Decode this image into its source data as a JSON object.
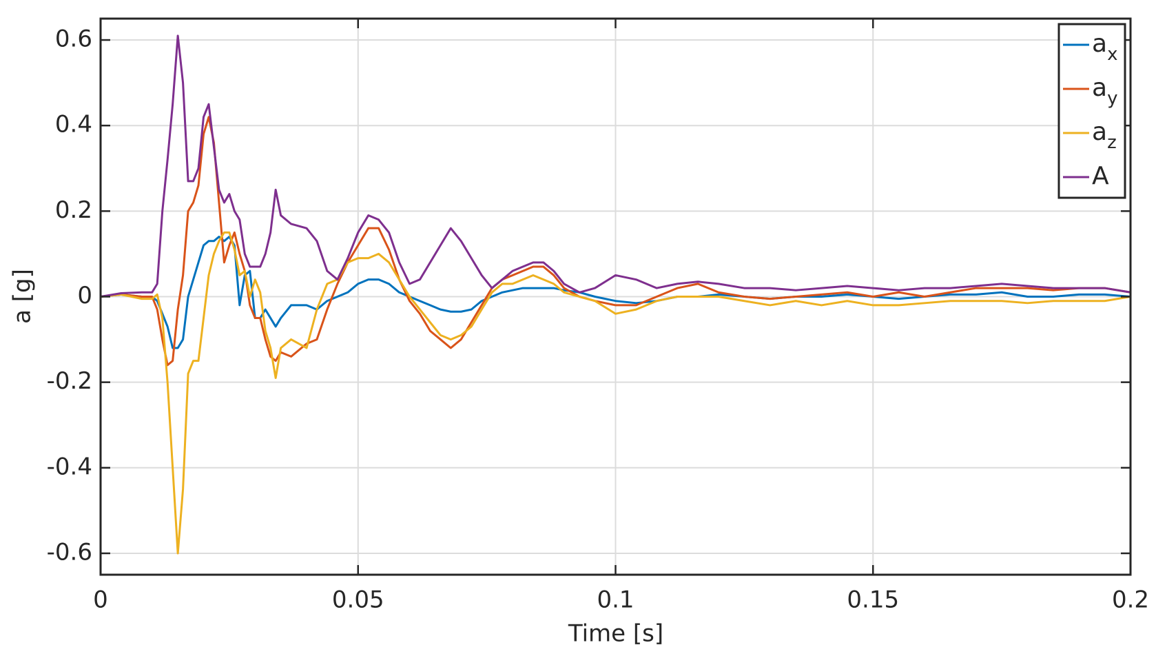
{
  "chart_data": {
    "type": "line",
    "x_label": "Time [s]",
    "y_label": "a [g]",
    "x": [
      0,
      0.004,
      0.008,
      0.01,
      0.011,
      0.012,
      0.013,
      0.014,
      0.015,
      0.016,
      0.017,
      0.018,
      0.019,
      0.02,
      0.021,
      0.022,
      0.023,
      0.024,
      0.025,
      0.026,
      0.027,
      0.028,
      0.029,
      0.03,
      0.031,
      0.032,
      0.033,
      0.034,
      0.035,
      0.037,
      0.04,
      0.042,
      0.044,
      0.046,
      0.048,
      0.05,
      0.052,
      0.054,
      0.056,
      0.058,
      0.06,
      0.062,
      0.064,
      0.066,
      0.068,
      0.07,
      0.072,
      0.074,
      0.076,
      0.078,
      0.08,
      0.082,
      0.084,
      0.086,
      0.088,
      0.09,
      0.093,
      0.096,
      0.1,
      0.104,
      0.108,
      0.112,
      0.116,
      0.12,
      0.125,
      0.13,
      0.135,
      0.14,
      0.145,
      0.15,
      0.155,
      0.16,
      0.165,
      0.17,
      0.175,
      0.18,
      0.185,
      0.19,
      0.195,
      0.2
    ],
    "series": [
      {
        "name": "a",
        "name_subscript": "x",
        "color": "#0072bd",
        "values": [
          0,
          0.005,
          0,
          0,
          -0.01,
          -0.04,
          -0.07,
          -0.12,
          -0.12,
          -0.1,
          0,
          0.04,
          0.08,
          0.12,
          0.13,
          0.13,
          0.14,
          0.13,
          0.14,
          0.12,
          -0.02,
          0.05,
          0.06,
          -0.05,
          -0.05,
          -0.03,
          -0.05,
          -0.07,
          -0.05,
          -0.02,
          -0.02,
          -0.03,
          -0.01,
          0,
          0.01,
          0.03,
          0.04,
          0.04,
          0.03,
          0.01,
          0,
          -0.01,
          -0.02,
          -0.03,
          -0.035,
          -0.035,
          -0.03,
          -0.01,
          0,
          0.01,
          0.015,
          0.02,
          0.02,
          0.02,
          0.02,
          0.015,
          0.01,
          0,
          -0.01,
          -0.015,
          -0.01,
          0,
          0,
          0.005,
          0,
          -0.005,
          0,
          0,
          0.005,
          0,
          -0.005,
          0,
          0.005,
          0.005,
          0.01,
          0,
          0,
          0.005,
          0.005,
          0
        ]
      },
      {
        "name": "a",
        "name_subscript": "y",
        "color": "#d95319",
        "values": [
          0,
          0.005,
          0,
          0,
          -0.03,
          -0.1,
          -0.16,
          -0.15,
          -0.03,
          0.05,
          0.2,
          0.22,
          0.26,
          0.38,
          0.42,
          0.36,
          0.22,
          0.08,
          0.12,
          0.15,
          0.1,
          0.06,
          -0.02,
          -0.05,
          -0.05,
          -0.1,
          -0.14,
          -0.15,
          -0.13,
          -0.14,
          -0.11,
          -0.1,
          -0.03,
          0.03,
          0.08,
          0.12,
          0.16,
          0.16,
          0.11,
          0.04,
          -0.01,
          -0.04,
          -0.08,
          -0.1,
          -0.12,
          -0.1,
          -0.06,
          -0.02,
          0.02,
          0.04,
          0.05,
          0.06,
          0.07,
          0.07,
          0.05,
          0.02,
          0,
          -0.01,
          -0.02,
          -0.02,
          0,
          0.02,
          0.03,
          0.01,
          0,
          -0.005,
          0,
          0.005,
          0.01,
          0,
          0.01,
          0,
          0.01,
          0.02,
          0.02,
          0.02,
          0.015,
          0.02,
          0.02,
          0.01
        ]
      },
      {
        "name": "a",
        "name_subscript": "z",
        "color": "#edb120",
        "values": [
          0,
          0.005,
          -0.005,
          -0.005,
          0.005,
          -0.05,
          -0.2,
          -0.4,
          -0.6,
          -0.45,
          -0.18,
          -0.15,
          -0.15,
          -0.05,
          0.05,
          0.1,
          0.13,
          0.15,
          0.15,
          0.11,
          0.05,
          0.06,
          0,
          0.04,
          0.01,
          -0.08,
          -0.12,
          -0.19,
          -0.12,
          -0.1,
          -0.12,
          -0.03,
          0.03,
          0.04,
          0.08,
          0.09,
          0.09,
          0.1,
          0.08,
          0.04,
          0,
          -0.03,
          -0.06,
          -0.09,
          -0.1,
          -0.09,
          -0.07,
          -0.03,
          0.01,
          0.03,
          0.03,
          0.04,
          0.05,
          0.04,
          0.03,
          0.01,
          0,
          -0.01,
          -0.04,
          -0.03,
          -0.01,
          0,
          0,
          0,
          -0.01,
          -0.02,
          -0.01,
          -0.02,
          -0.01,
          -0.02,
          -0.02,
          -0.015,
          -0.01,
          -0.01,
          -0.01,
          -0.015,
          -0.01,
          -0.01,
          -0.01,
          0
        ]
      },
      {
        "name": "A",
        "color": "#7e2f8e",
        "values": [
          0,
          0.008,
          0.01,
          0.01,
          0.03,
          0.2,
          0.32,
          0.45,
          0.61,
          0.5,
          0.27,
          0.27,
          0.3,
          0.42,
          0.45,
          0.35,
          0.25,
          0.22,
          0.24,
          0.2,
          0.18,
          0.1,
          0.07,
          0.07,
          0.07,
          0.1,
          0.15,
          0.25,
          0.19,
          0.17,
          0.16,
          0.13,
          0.06,
          0.04,
          0.09,
          0.15,
          0.19,
          0.18,
          0.15,
          0.08,
          0.03,
          0.04,
          0.08,
          0.12,
          0.16,
          0.13,
          0.09,
          0.05,
          0.02,
          0.04,
          0.06,
          0.07,
          0.08,
          0.08,
          0.06,
          0.03,
          0.01,
          0.02,
          0.05,
          0.04,
          0.02,
          0.03,
          0.035,
          0.03,
          0.02,
          0.02,
          0.015,
          0.02,
          0.025,
          0.02,
          0.015,
          0.02,
          0.02,
          0.025,
          0.03,
          0.025,
          0.02,
          0.02,
          0.02,
          0.01
        ]
      }
    ],
    "xlim": [
      0,
      0.2
    ],
    "xticks": [
      0,
      0.05,
      0.1,
      0.15,
      0.2
    ],
    "ylim": [
      -0.65,
      0.65
    ],
    "yticks": [
      -0.6,
      -0.4,
      -0.2,
      0,
      0.2,
      0.4,
      0.6
    ],
    "grid": true,
    "legend": "top-right"
  }
}
